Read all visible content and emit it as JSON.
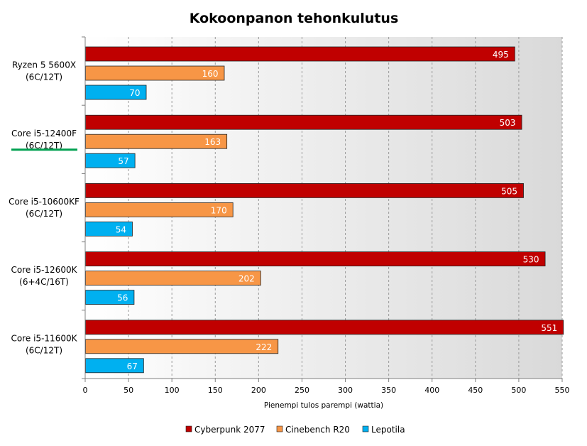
{
  "chart_data": {
    "type": "bar",
    "orientation": "horizontal",
    "title": "Kokoonpanon tehonkulutus",
    "xlabel": "Pienempi tulos parempi (wattia)",
    "ylabel": "",
    "xlim": [
      0,
      550
    ],
    "x_ticks": [
      0,
      50,
      100,
      150,
      200,
      250,
      300,
      350,
      400,
      450,
      500,
      550
    ],
    "grid": true,
    "legend_position": "bottom",
    "highlighted_category": "Core i5-12400F\n(6C/12T)",
    "categories": [
      "Ryzen 5 5600X\n(6C/12T)",
      "Core i5-12400F\n(6C/12T)",
      "Core i5-10600KF\n(6C/12T)",
      "Core i5-12600K\n(6+4C/16T)",
      "Core i5-11600K\n(6C/12T)"
    ],
    "series": [
      {
        "name": "Cyberpunk 2077",
        "color": "#c00000",
        "values": [
          495,
          503,
          505,
          530,
          551
        ]
      },
      {
        "name": "Cinebench R20",
        "color": "#f79646",
        "values": [
          160,
          163,
          170,
          202,
          222
        ]
      },
      {
        "name": "Lepotila",
        "color": "#00b0f0",
        "values": [
          70,
          57,
          54,
          56,
          67
        ]
      }
    ],
    "highlight_color": "#00a050"
  }
}
